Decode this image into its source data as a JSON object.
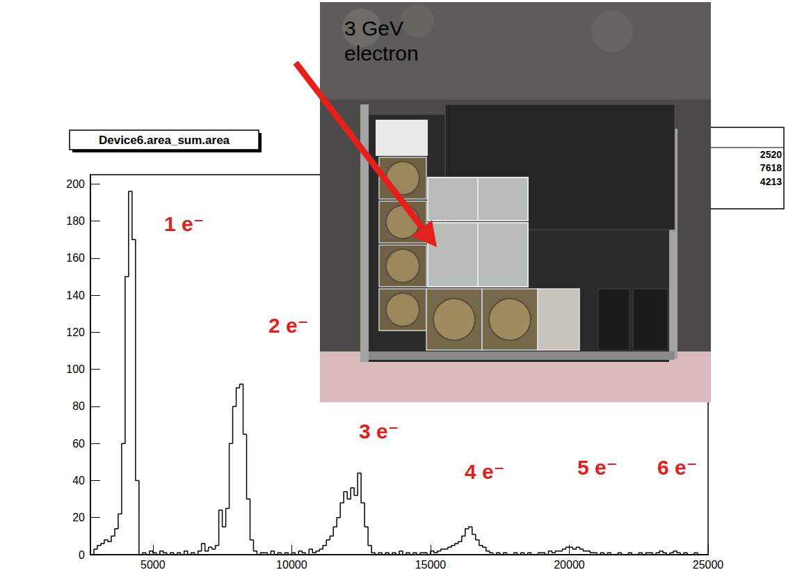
{
  "chart_data": {
    "type": "histogram",
    "title": "Device6.area_sum.area",
    "color": "#000000",
    "grid": false,
    "xlim": [
      2750,
      25000
    ],
    "ylim": [
      0,
      205
    ],
    "xticks": [
      5000,
      10000,
      15000,
      20000,
      25000
    ],
    "yticks": [
      0,
      20,
      40,
      60,
      80,
      100,
      120,
      140,
      160,
      180,
      200
    ],
    "bins": [
      2750,
      2875,
      3000,
      3125,
      3250,
      3375,
      3500,
      3625,
      3750,
      3875,
      4000,
      4125,
      4250,
      4375,
      4500,
      4625,
      4750,
      4875,
      5000,
      5125,
      5250,
      5375,
      5500,
      5625,
      5750,
      5875,
      6000,
      6125,
      6250,
      6375,
      6500,
      6625,
      6750,
      6875,
      7000,
      7125,
      7250,
      7375,
      7500,
      7625,
      7750,
      7875,
      8000,
      8125,
      8250,
      8375,
      8500,
      8625,
      8750,
      8875,
      9000,
      9125,
      9250,
      9375,
      9500,
      9625,
      9750,
      9875,
      10000,
      10125,
      10250,
      10375,
      10500,
      10625,
      10750,
      10875,
      11000,
      11125,
      11250,
      11375,
      11500,
      11625,
      11750,
      11875,
      12000,
      12125,
      12250,
      12375,
      12500,
      12625,
      12750,
      12875,
      13000,
      13125,
      13250,
      13375,
      13500,
      13625,
      13750,
      13875,
      14000,
      14125,
      14250,
      14375,
      14500,
      14625,
      14750,
      14875,
      15000,
      15125,
      15250,
      15375,
      15500,
      15625,
      15750,
      15875,
      16000,
      16125,
      16250,
      16375,
      16500,
      16625,
      16750,
      16875,
      17000,
      17125,
      17250,
      17375,
      17500,
      17625,
      17750,
      17875,
      18000,
      18125,
      18250,
      18375,
      18500,
      18625,
      18750,
      18875,
      19000,
      19125,
      19250,
      19375,
      19500,
      19625,
      19750,
      19875,
      20000,
      20125,
      20250,
      20375,
      20500,
      20625,
      20750,
      20875,
      21000,
      21125,
      21250,
      21375,
      21500,
      21625,
      21750,
      21875,
      22000,
      22125,
      22250,
      22375,
      22500,
      22625,
      22750,
      22875,
      23000,
      23125,
      23250,
      23375,
      23500,
      23625,
      23750,
      23875,
      24000,
      24125,
      24250,
      24375,
      24500,
      24625,
      24750,
      24875,
      25000
    ],
    "counts": [
      0,
      3,
      5,
      6,
      8,
      7,
      10,
      14,
      22,
      60,
      150,
      196,
      170,
      40,
      0,
      1,
      0,
      2,
      1,
      0,
      2,
      1,
      0,
      1,
      0,
      1,
      0,
      2,
      0,
      1,
      0,
      2,
      6,
      2,
      4,
      3,
      5,
      24,
      15,
      25,
      60,
      80,
      90,
      92,
      65,
      30,
      8,
      2,
      0,
      1,
      1,
      0,
      2,
      0,
      1,
      0,
      1,
      0,
      1,
      0,
      2,
      1,
      0,
      3,
      1,
      2,
      3,
      5,
      8,
      10,
      15,
      20,
      28,
      34,
      30,
      36,
      32,
      44,
      28,
      15,
      5,
      1,
      0,
      1,
      0,
      1,
      0,
      1,
      0,
      2,
      0,
      1,
      0,
      1,
      0,
      1,
      1,
      0,
      2,
      1,
      2,
      3,
      3,
      4,
      5,
      6,
      7,
      10,
      14,
      15,
      11,
      8,
      5,
      4,
      2,
      1,
      0,
      1,
      0,
      1,
      0,
      0,
      1,
      0,
      1,
      0,
      1,
      0,
      0,
      1,
      1,
      0,
      2,
      1,
      2,
      2,
      3,
      4,
      4,
      3,
      4,
      3,
      2,
      2,
      1,
      1,
      0,
      1,
      0,
      1,
      0,
      0,
      1,
      0,
      0,
      1,
      0,
      0,
      1,
      0,
      1,
      1,
      0,
      1,
      2,
      1,
      0,
      1,
      2,
      1,
      0,
      1,
      0,
      0,
      1,
      0,
      0,
      0
    ],
    "peak_labels": [
      "1 e⁻",
      "2 e⁻",
      "3 e⁻",
      "4 e⁻",
      "5 e⁻",
      "6 e⁻"
    ],
    "arrow_label": "3 GeV electron",
    "stats": [
      2520,
      7618,
      4213
    ]
  }
}
